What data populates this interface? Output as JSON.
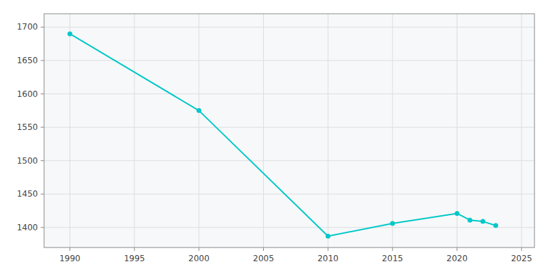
{
  "chart_data": {
    "type": "line",
    "x": [
      1990,
      2000,
      2010,
      2015,
      2020,
      2021,
      2022,
      2023
    ],
    "values": [
      1690,
      1575,
      1387,
      1406,
      1421,
      1411,
      1409,
      1403
    ],
    "color": "#00C8C8",
    "marker": "circle",
    "xlim": [
      1988,
      2026
    ],
    "ylim": [
      1370,
      1720
    ],
    "xticks": [
      1990,
      1995,
      2000,
      2005,
      2010,
      2015,
      2020,
      2025
    ],
    "yticks": [
      1400,
      1450,
      1500,
      1550,
      1600,
      1650,
      1700
    ],
    "grid": true
  }
}
